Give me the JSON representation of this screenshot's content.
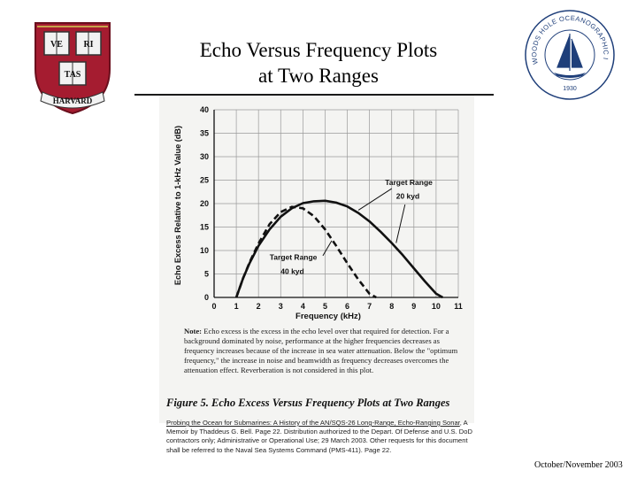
{
  "slide": {
    "title_line1": "Echo Versus Frequency Plots",
    "title_line2": "at Two Ranges",
    "footer": "October/November 2003"
  },
  "logos": {
    "left": {
      "icon": "harvard-shield-icon",
      "letters": [
        "VE",
        "RI",
        "TAS"
      ],
      "banner": "HARVARD",
      "colors": {
        "shield": "#a51c30",
        "book": "#f2f2f2"
      }
    },
    "right": {
      "icon": "whoi-seal-icon",
      "ring_text": "WOODS HOLE OCEANOGRAPHIC INSTITUTION",
      "year": "1930",
      "color": "#1f3f7a"
    }
  },
  "chart_data": {
    "type": "line",
    "title": "",
    "xlabel": "Frequency (kHz)",
    "ylabel": "Echo Excess Relative to 1-kHz Value (dB)",
    "xlim": [
      0,
      11
    ],
    "ylim": [
      0,
      40
    ],
    "x_ticks": [
      0,
      1,
      2,
      3,
      4,
      5,
      6,
      7,
      8,
      9,
      10,
      11
    ],
    "y_ticks": [
      0,
      5,
      10,
      15,
      20,
      25,
      30,
      35,
      40
    ],
    "grid": true,
    "series": [
      {
        "name": "Target Range 20 kyd",
        "style": "solid",
        "x": [
          1,
          1.3,
          1.6,
          2,
          2.5,
          3,
          3.5,
          4,
          4.5,
          5,
          5.5,
          6,
          6.5,
          7,
          7.5,
          8,
          8.5,
          9,
          9.5,
          10,
          10.3
        ],
        "y": [
          0,
          4,
          7.3,
          11,
          14.5,
          17.2,
          19,
          20.1,
          20.5,
          20.6,
          20.2,
          19.4,
          18,
          16.2,
          14,
          11.6,
          9,
          6.2,
          3.4,
          0.8,
          0
        ]
      },
      {
        "name": "Target Range 40 kyd",
        "style": "dashed",
        "x": [
          1,
          1.3,
          1.6,
          2,
          2.5,
          3,
          3.5,
          4,
          4.5,
          5,
          5.5,
          6,
          6.5,
          7,
          7.3
        ],
        "y": [
          0,
          4,
          7.5,
          11.5,
          15.6,
          18.2,
          19.3,
          19,
          17.3,
          14.5,
          11,
          7.3,
          3.8,
          0.8,
          0
        ]
      }
    ],
    "annotations": [
      {
        "line1": "Target Range",
        "line2": "20 kyd"
      },
      {
        "line1": "Target Range",
        "line2": "40 kyd"
      }
    ],
    "note_label": "Note:",
    "note": "Echo excess is the excess in the echo level over that required for detection. For a background dominated by noise, performance at the higher frequencies decreases as frequency increases because of the increase in sea water attenuation. Below the \"optimum frequency,\" the increase in noise and beamwidth as frequency decreases overcomes the attenuation effect. Reverberation is not considered in this plot.",
    "caption": "Figure 5. Echo Excess Versus Frequency Plots at Two Ranges"
  },
  "source": {
    "line1": "Probing the Ocean for Submarines: A History of the AN/SQS-26 Long-Range, Echo-Ranging Sonar",
    "line2": ", A Memoir by Thaddeus G. Bell. Page 22. Distribution authorized to the Depart. Of Defense and U.S. DoD contractors only; Administrative or Operational Use; 29 March 2003. Other requests for this document shall be referred to the Naval Sea Systems Command (PMS-411). Page 22."
  }
}
